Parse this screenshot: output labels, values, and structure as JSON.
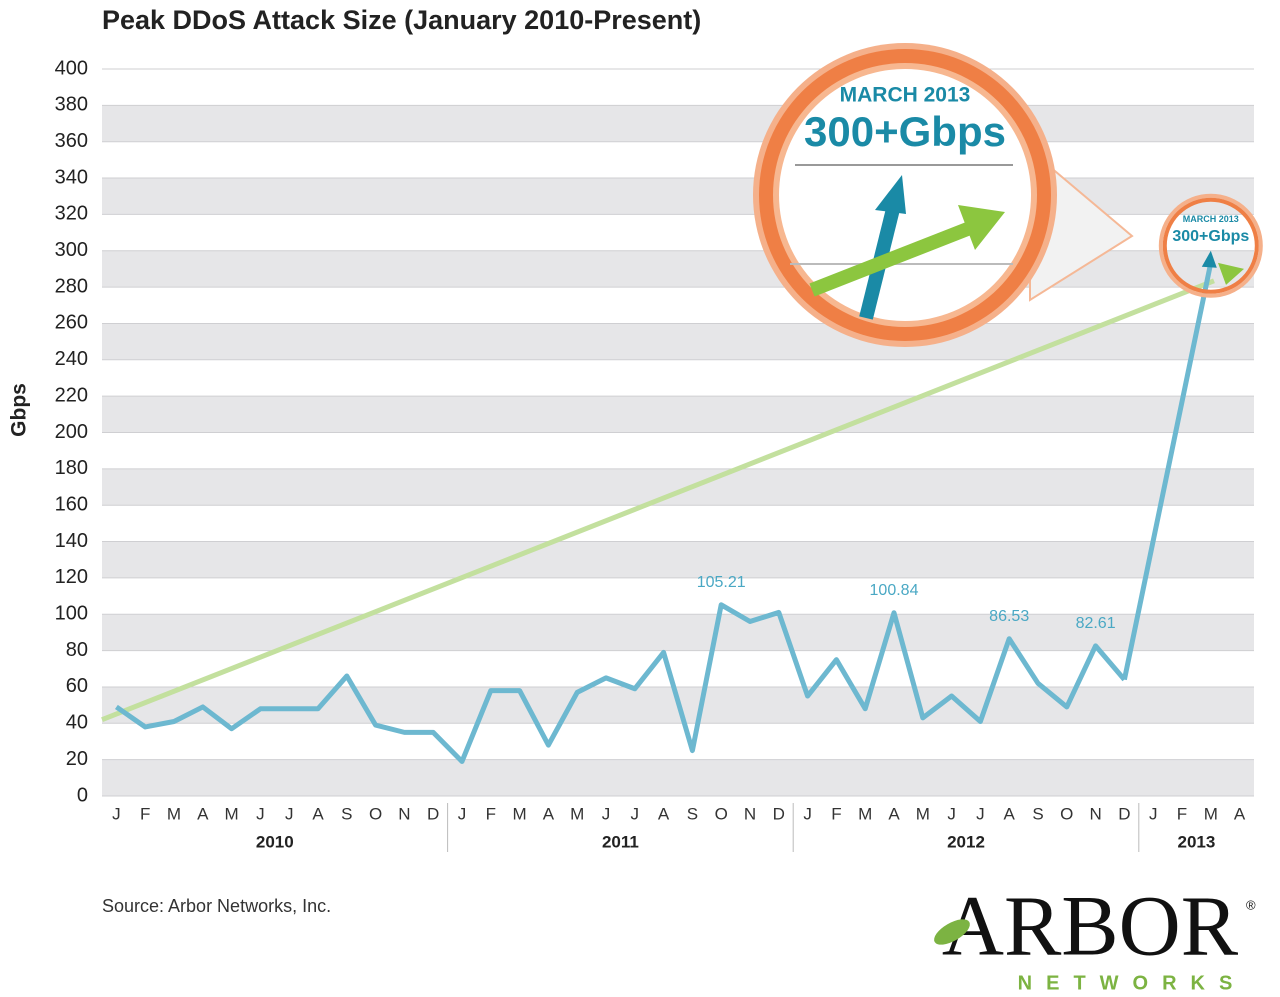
{
  "chart_data": {
    "type": "line",
    "title": "Peak DDoS Attack Size (January 2010-Present)",
    "y_label": "Gbps",
    "source": "Source: Arbor Networks, Inc.",
    "categories": [
      "J",
      "F",
      "M",
      "A",
      "M",
      "J",
      "J",
      "A",
      "S",
      "O",
      "N",
      "D",
      "J",
      "F",
      "M",
      "A",
      "M",
      "J",
      "J",
      "A",
      "S",
      "O",
      "N",
      "D",
      "J",
      "F",
      "M",
      "A",
      "M",
      "J",
      "J",
      "A",
      "S",
      "O",
      "N",
      "D",
      "J",
      "F",
      "M",
      "A"
    ],
    "years": [
      {
        "label": "2010",
        "months": 12
      },
      {
        "label": "2011",
        "months": 12
      },
      {
        "label": "2012",
        "months": 12
      },
      {
        "label": "2013",
        "months": 4
      }
    ],
    "series": [
      {
        "color": "#6db8d0",
        "values": [
          49,
          38,
          41,
          49,
          37,
          48,
          48,
          48,
          66,
          39,
          35,
          35,
          19,
          58,
          58,
          28,
          57,
          65,
          59,
          79,
          25,
          105.21,
          96,
          101,
          55,
          75,
          48,
          100.84,
          43,
          55,
          41,
          86.53,
          62,
          49,
          82.61,
          64,
          null,
          null,
          300,
          null
        ],
        "value_labels": [
          null,
          null,
          null,
          null,
          null,
          null,
          null,
          null,
          null,
          null,
          null,
          null,
          null,
          null,
          null,
          null,
          null,
          null,
          null,
          null,
          null,
          "105.21",
          null,
          null,
          null,
          null,
          null,
          "100.84",
          null,
          null,
          null,
          "86.53",
          null,
          null,
          "82.61",
          null,
          null,
          null,
          null,
          null
        ]
      }
    ],
    "trend_line": {
      "color": "#c3e09e",
      "values": [
        42,
        290
      ]
    },
    "ylim": [
      0,
      400
    ],
    "yticks": [
      0,
      20,
      40,
      60,
      80,
      100,
      120,
      140,
      160,
      180,
      200,
      220,
      240,
      260,
      280,
      300,
      320,
      340,
      360,
      380,
      400
    ],
    "grid": true,
    "callout": {
      "label": "MARCH 2013",
      "value_text": "300+Gbps"
    },
    "logo": {
      "name": "ARBOR",
      "mark": "®",
      "sub": "NETWORKS"
    }
  }
}
